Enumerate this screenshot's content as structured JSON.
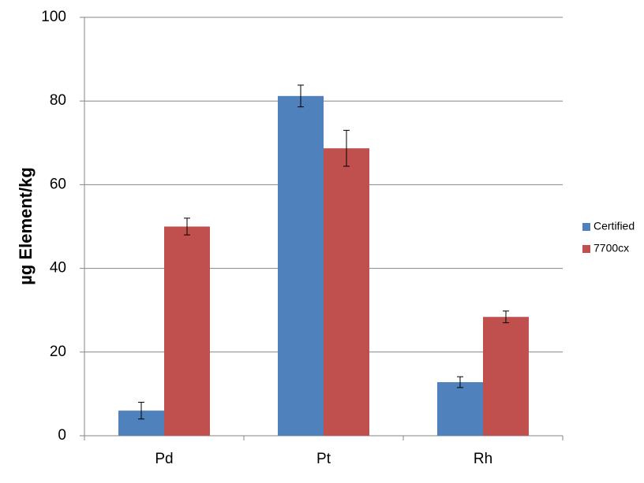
{
  "chart_data": {
    "type": "bar",
    "y_label": "µg Element/kg",
    "categories": [
      "Pd",
      "Pt",
      "Rh"
    ],
    "series": [
      {
        "name": "Certified",
        "color": "#4f81bd",
        "values": [
          6,
          81.2,
          12.8
        ],
        "errors": [
          2,
          2.6,
          1.3
        ]
      },
      {
        "name": "7700cx",
        "color": "#c0504d",
        "values": [
          50,
          68.7,
          28.4
        ],
        "errors": [
          2,
          4.3,
          1.4
        ]
      }
    ],
    "ylim": [
      0,
      100
    ],
    "yticks": [
      0,
      20,
      40,
      60,
      80,
      100
    ],
    "grid": true,
    "legend": "right"
  }
}
